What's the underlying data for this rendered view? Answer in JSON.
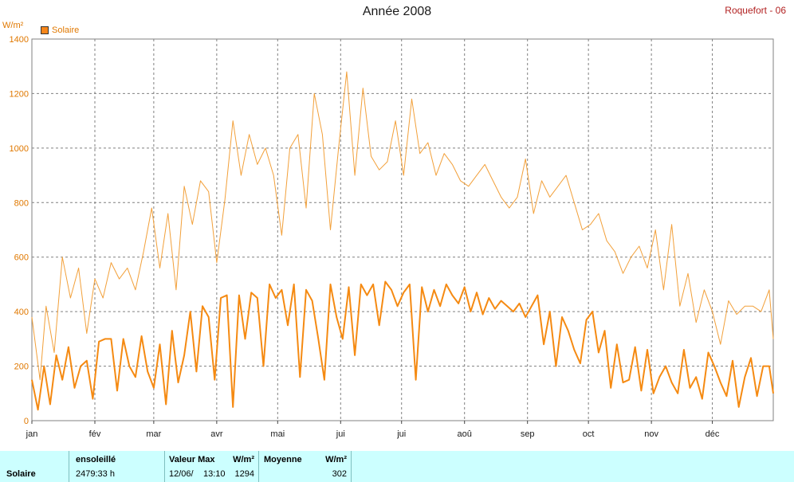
{
  "title": "Année 2008",
  "station": "Roquefort - 06",
  "unit": "W/m²",
  "legend_label": "Solaire",
  "colors": {
    "series_light": "#f2a03a",
    "series_dark": "#f58a12",
    "grid": "#808080",
    "axis_text": "#e07800",
    "footer_bg": "#ccffff"
  },
  "chart_data": {
    "type": "line",
    "title": "Année 2008",
    "xlabel": "",
    "ylabel": "W/m²",
    "ylim": [
      0,
      1400
    ],
    "yticks": [
      0,
      200,
      400,
      600,
      800,
      1000,
      1200,
      1400
    ],
    "xlim": [
      1,
      366
    ],
    "xticks": [
      {
        "label": "jan",
        "day": 1
      },
      {
        "label": "fév",
        "day": 32
      },
      {
        "label": "mar",
        "day": 61
      },
      {
        "label": "avr",
        "day": 92
      },
      {
        "label": "mai",
        "day": 122
      },
      {
        "label": "jui",
        "day": 153
      },
      {
        "label": "jui",
        "day": 183
      },
      {
        "label": "aoû",
        "day": 214
      },
      {
        "label": "sep",
        "day": 245
      },
      {
        "label": "oct",
        "day": 275
      },
      {
        "label": "nov",
        "day": 306
      },
      {
        "label": "déc",
        "day": 336
      }
    ],
    "grid": true,
    "legend": "top-left",
    "series": [
      {
        "name": "Solaire",
        "style": "max",
        "x": [
          1,
          5,
          8,
          12,
          16,
          20,
          24,
          28,
          32,
          36,
          40,
          44,
          48,
          52,
          56,
          60,
          64,
          68,
          72,
          76,
          80,
          84,
          88,
          92,
          96,
          100,
          104,
          108,
          112,
          116,
          120,
          124,
          128,
          132,
          136,
          140,
          144,
          148,
          152,
          156,
          160,
          164,
          168,
          172,
          176,
          180,
          184,
          188,
          192,
          196,
          200,
          204,
          208,
          212,
          216,
          220,
          224,
          228,
          232,
          236,
          240,
          244,
          248,
          252,
          256,
          260,
          264,
          268,
          272,
          276,
          280,
          284,
          288,
          292,
          296,
          300,
          304,
          308,
          312,
          316,
          320,
          324,
          328,
          332,
          336,
          340,
          344,
          348,
          352,
          356,
          360,
          364,
          366
        ],
        "y": [
          380,
          150,
          420,
          250,
          600,
          450,
          560,
          320,
          520,
          450,
          580,
          520,
          560,
          480,
          620,
          780,
          560,
          760,
          480,
          860,
          720,
          880,
          840,
          580,
          810,
          1100,
          900,
          1050,
          940,
          1000,
          900,
          680,
          1000,
          1050,
          780,
          1200,
          1050,
          700,
          1000,
          1280,
          900,
          1220,
          970,
          920,
          950,
          1100,
          900,
          1180,
          980,
          1020,
          900,
          980,
          940,
          880,
          860,
          900,
          940,
          880,
          820,
          780,
          820,
          960,
          760,
          880,
          820,
          860,
          900,
          800,
          700,
          720,
          760,
          660,
          620,
          540,
          600,
          640,
          560,
          700,
          480,
          720,
          420,
          540,
          360,
          480,
          400,
          280,
          440,
          390,
          420,
          420,
          400,
          480,
          300
        ]
      },
      {
        "name": "Solaire",
        "style": "mean",
        "x": [
          1,
          4,
          7,
          10,
          13,
          16,
          19,
          22,
          25,
          28,
          31,
          34,
          37,
          40,
          43,
          46,
          49,
          52,
          55,
          58,
          61,
          64,
          67,
          70,
          73,
          76,
          79,
          82,
          85,
          88,
          91,
          94,
          97,
          100,
          103,
          106,
          109,
          112,
          115,
          118,
          121,
          124,
          127,
          130,
          133,
          136,
          139,
          142,
          145,
          148,
          151,
          154,
          157,
          160,
          163,
          166,
          169,
          172,
          175,
          178,
          181,
          184,
          187,
          190,
          193,
          196,
          199,
          202,
          205,
          208,
          211,
          214,
          217,
          220,
          223,
          226,
          229,
          232,
          235,
          238,
          241,
          244,
          247,
          250,
          253,
          256,
          259,
          262,
          265,
          268,
          271,
          274,
          277,
          280,
          283,
          286,
          289,
          292,
          295,
          298,
          301,
          304,
          307,
          310,
          313,
          316,
          319,
          322,
          325,
          328,
          331,
          334,
          337,
          340,
          343,
          346,
          349,
          352,
          355,
          358,
          361,
          364,
          366
        ],
        "y": [
          150,
          40,
          200,
          60,
          240,
          150,
          270,
          120,
          200,
          220,
          80,
          290,
          300,
          300,
          110,
          300,
          200,
          160,
          310,
          180,
          120,
          280,
          60,
          330,
          140,
          240,
          400,
          180,
          420,
          380,
          150,
          450,
          460,
          50,
          460,
          300,
          470,
          450,
          200,
          500,
          450,
          480,
          350,
          500,
          160,
          480,
          440,
          300,
          150,
          500,
          380,
          300,
          490,
          240,
          500,
          460,
          500,
          350,
          510,
          480,
          420,
          470,
          500,
          150,
          490,
          400,
          480,
          420,
          500,
          460,
          430,
          490,
          400,
          470,
          390,
          450,
          410,
          440,
          420,
          400,
          430,
          380,
          420,
          460,
          280,
          400,
          200,
          380,
          330,
          260,
          210,
          370,
          400,
          250,
          330,
          120,
          280,
          140,
          150,
          270,
          110,
          260,
          100,
          160,
          200,
          140,
          100,
          260,
          120,
          160,
          80,
          250,
          200,
          140,
          90,
          220,
          50,
          160,
          230,
          90,
          200,
          200,
          100
        ]
      }
    ]
  },
  "footer": {
    "series_name": "Solaire",
    "sun_label": "ensoleillé",
    "sun_value": "2479:33 h",
    "max_label": "Valeur Max",
    "max_unit": "W/m²",
    "max_date": "12/06/",
    "max_time": "13:10",
    "max_value": "1294",
    "mean_label": "Moyenne",
    "mean_unit": "W/m²",
    "mean_value": "302"
  }
}
